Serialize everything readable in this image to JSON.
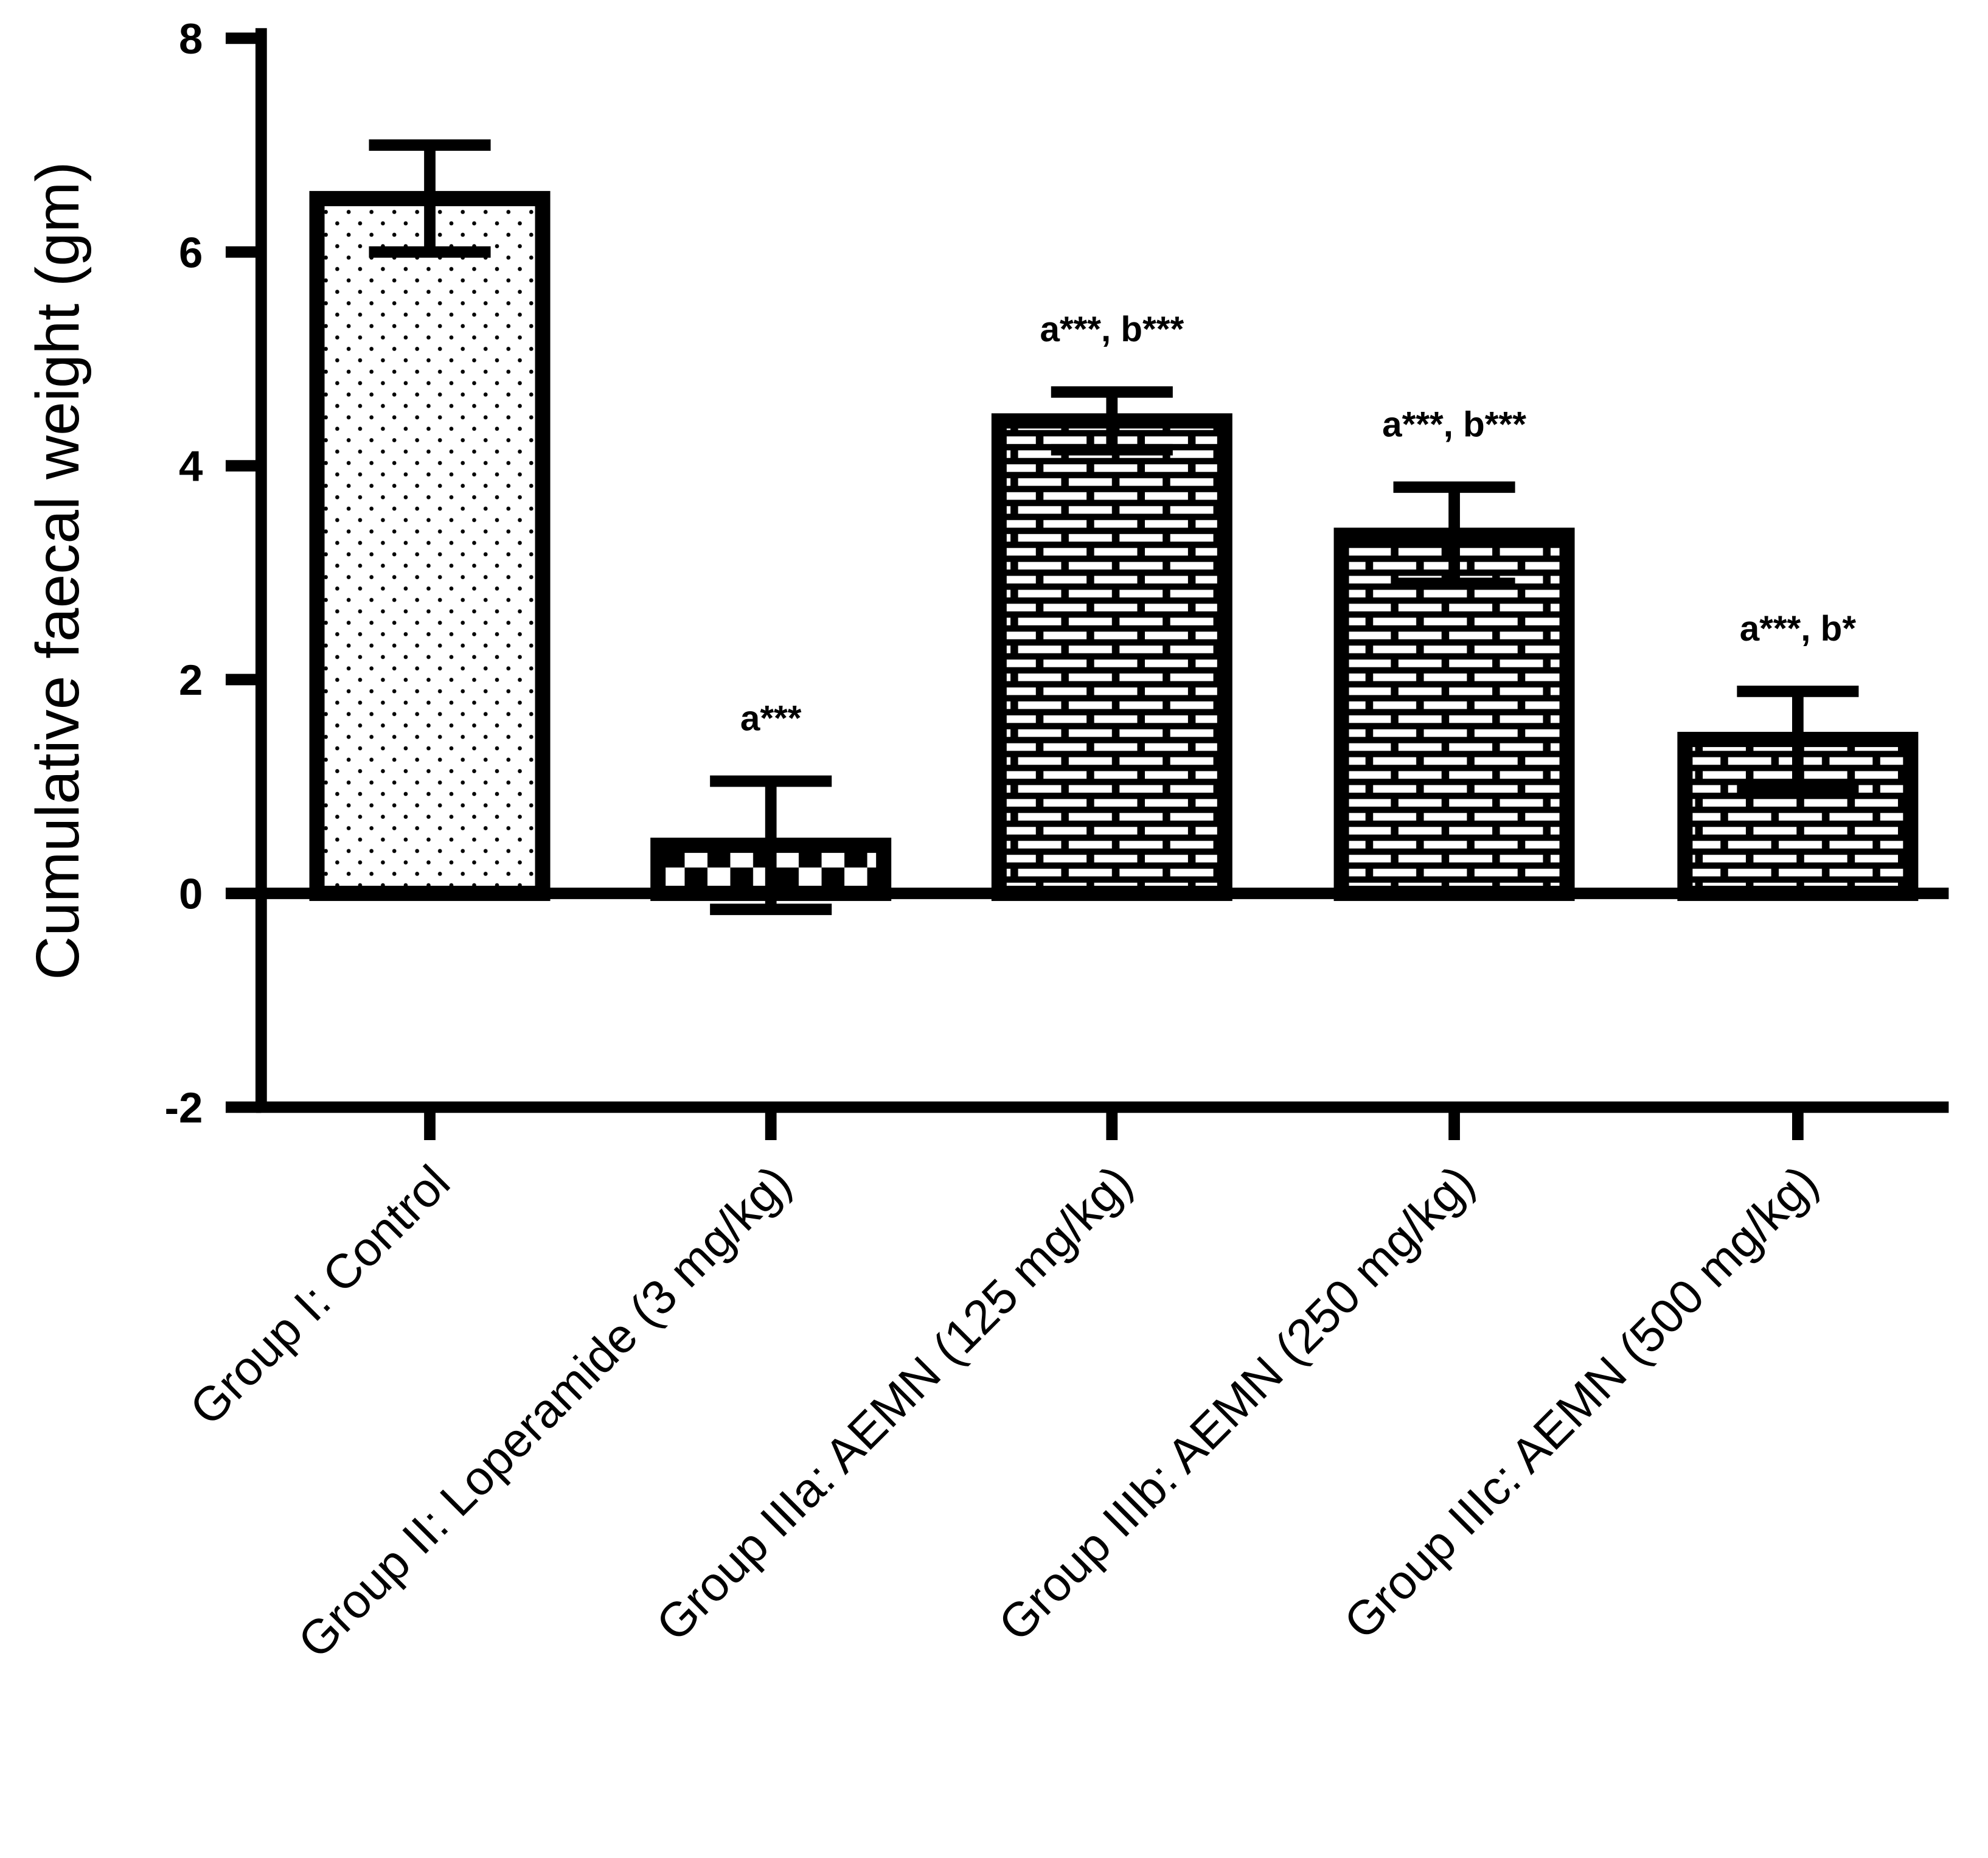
{
  "chart_data": {
    "type": "bar",
    "title": "",
    "xlabel": "",
    "ylabel": "Cumulative faecal weight (gm)",
    "ylim": [
      -2,
      8
    ],
    "yticks": [
      -2,
      0,
      2,
      4,
      6,
      8
    ],
    "grid": false,
    "categories": [
      "Group I: Control",
      "Group II: Loperamide (3 mg/kg)",
      "Group IIIa: AEMN (125 mg/kg)",
      "Group IIIb: AEMN (250 mg/kg)",
      "Group IIIc: AEMN (500 mg/kg)"
    ],
    "values": [
      6.5,
      0.45,
      4.42,
      3.35,
      1.44
    ],
    "errors": [
      0.5,
      0.6,
      0.27,
      0.45,
      0.45
    ],
    "patterns": [
      "dots",
      "checker",
      "brick",
      "brick",
      "brick"
    ],
    "annotations": [
      "",
      "a***",
      "a***, b***",
      "a***, b***",
      "a***, b*"
    ],
    "colors": {
      "stroke": "#000000",
      "fill": "#ffffff"
    }
  }
}
